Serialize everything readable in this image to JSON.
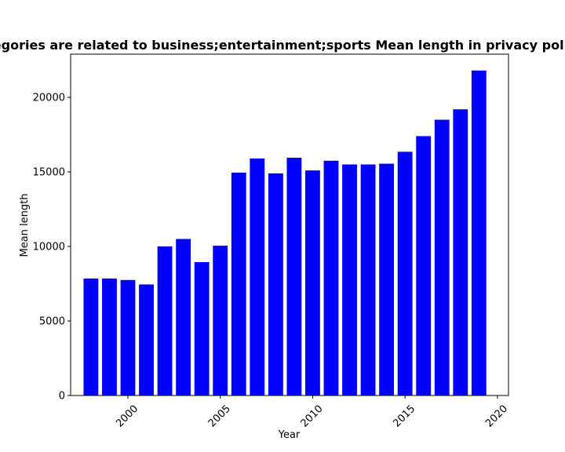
{
  "chart_data": {
    "type": "bar",
    "title": "Categories are related to business;entertainment;sports Mean length in privacy policies",
    "xlabel": "Year",
    "ylabel": "Mean length",
    "x": [
      1998,
      1999,
      2000,
      2001,
      2002,
      2003,
      2004,
      2005,
      2006,
      2007,
      2008,
      2009,
      2010,
      2011,
      2012,
      2013,
      2014,
      2015,
      2016,
      2017,
      2018,
      2019
    ],
    "values": [
      7850,
      7850,
      7750,
      7450,
      10000,
      10500,
      8950,
      10050,
      14950,
      15900,
      14900,
      15950,
      15100,
      15750,
      15500,
      15500,
      15550,
      16350,
      17400,
      18500,
      19200,
      21800
    ],
    "xlim": [
      1996.9,
      2020.6
    ],
    "ylim": [
      0,
      22900
    ],
    "xticks": [
      2000,
      2005,
      2010,
      2015,
      2020
    ],
    "yticks": [
      0,
      5000,
      10000,
      15000,
      20000
    ],
    "bar_color": "#0000ff",
    "grid": false,
    "legend": "none"
  }
}
